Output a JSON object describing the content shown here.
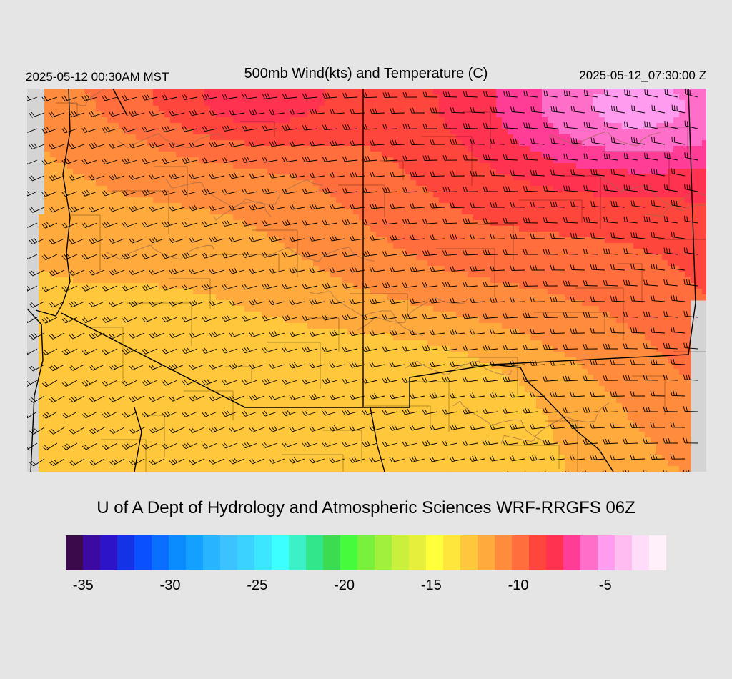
{
  "header": {
    "local_time": "2025-05-12 00:30AM MST",
    "title": "500mb Wind(kts) and Temperature (C)",
    "utc_time": "2025-05-12_07:30:00 Z"
  },
  "credit": "U of A Dept of Hydrology and Atmospheric Sciences WRF-RRGFS 06Z",
  "colors": {
    "background": "#e5e5e5",
    "no_data": "#d4d4d4",
    "barb": "#000000",
    "border": "#000000",
    "terrain_contour": "#9a6a50"
  },
  "colorbar": {
    "colors": [
      "#3a0a4a",
      "#3c0aa0",
      "#2e14c8",
      "#1432e6",
      "#0a50ff",
      "#0a6eff",
      "#0a8cff",
      "#14a0ff",
      "#28b4ff",
      "#3cc3ff",
      "#3cd2ff",
      "#3ce6ff",
      "#3cffff",
      "#3cf0c8",
      "#32e68c",
      "#3cdc50",
      "#46fa3c",
      "#78f03c",
      "#a0f03c",
      "#c8f03c",
      "#e6f03c",
      "#ffff3c",
      "#ffe63c",
      "#ffc83c",
      "#ffaa3c",
      "#ff8c3c",
      "#ff6e3c",
      "#ff463c",
      "#ff3250",
      "#ff3c96",
      "#ff6ec8",
      "#ff9cf0",
      "#ffbcf0",
      "#ffdcfa",
      "#fff0fa"
    ],
    "ticks": [
      "-35",
      "-30",
      "-25",
      "-20",
      "-15",
      "-10",
      "-5"
    ],
    "tick_values": [
      -35,
      -30,
      -25,
      -20,
      -15,
      -10,
      -5
    ],
    "range": [
      -36,
      -1.5
    ]
  },
  "map": {
    "variable": "500mb temperature",
    "units": "C",
    "wind_units": "kts",
    "temperature_range_shown": [
      -13,
      -5
    ],
    "warmest_region": "northeast",
    "coldest_region": "south-central",
    "wind_direction": "westerly / west-southwesterly",
    "icons": [
      "wind-barb-icon",
      "state-border-icon",
      "terrain-contour-icon"
    ]
  }
}
